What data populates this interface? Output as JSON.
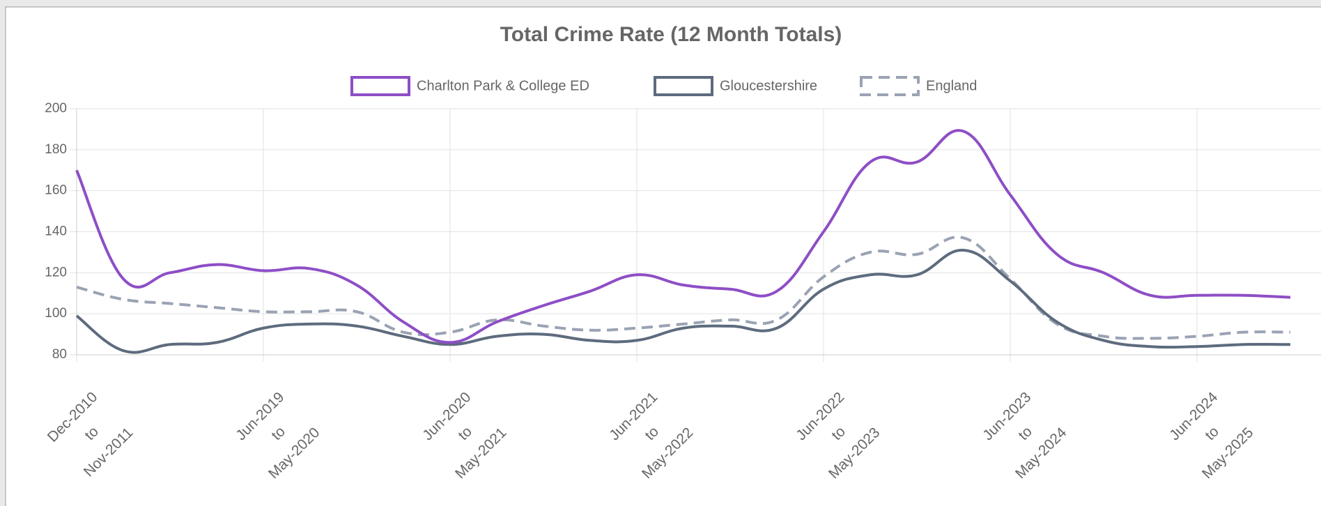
{
  "chart_data": {
    "type": "line",
    "title": "Total Crime Rate (12 Month Totals)",
    "categories": [
      [
        "Dec-2010",
        "to",
        "Nov-2011"
      ],
      null,
      null,
      null,
      [
        "Jun-2019",
        "to",
        "May-2020"
      ],
      null,
      null,
      null,
      [
        "Jun-2020",
        "to",
        "May-2021"
      ],
      null,
      null,
      null,
      [
        "Jun-2021",
        "to",
        "May-2022"
      ],
      null,
      null,
      null,
      [
        "Jun-2022",
        "to",
        "May-2023"
      ],
      null,
      null,
      null,
      [
        "Jun-2023",
        "to",
        "May-2024"
      ],
      null,
      null,
      null,
      [
        "Jun-2024",
        "to",
        "May-2025"
      ],
      null,
      null
    ],
    "series": [
      {
        "name": "Charlton Park & College ED",
        "color": "#8e4ec6",
        "dashed": false,
        "values": [
          170,
          117,
          120,
          124,
          121,
          122,
          114,
          96,
          86,
          96,
          104,
          111,
          119,
          114,
          112,
          111,
          140,
          174,
          174,
          189,
          158,
          129,
          120,
          109,
          109,
          109,
          108
        ]
      },
      {
        "name": "Gloucestershire",
        "color": "#5d6b7e",
        "dashed": false,
        "values": [
          99,
          82,
          85,
          86,
          93,
          95,
          94,
          89,
          85,
          89,
          90,
          87,
          87,
          93,
          94,
          93,
          112,
          119,
          119,
          131,
          116,
          96,
          87,
          84,
          84,
          85,
          85
        ]
      },
      {
        "name": "England",
        "color": "#9aa3b3",
        "dashed": true,
        "values": [
          113,
          107,
          105,
          103,
          101,
          101,
          101,
          91,
          91,
          97,
          94,
          92,
          93,
          95,
          97,
          97,
          118,
          130,
          129,
          137,
          117,
          95,
          89,
          88,
          89,
          91,
          91
        ]
      }
    ],
    "ylim": [
      80,
      200
    ],
    "yticks": [
      80,
      100,
      120,
      140,
      160,
      180,
      200
    ],
    "grid": true
  }
}
